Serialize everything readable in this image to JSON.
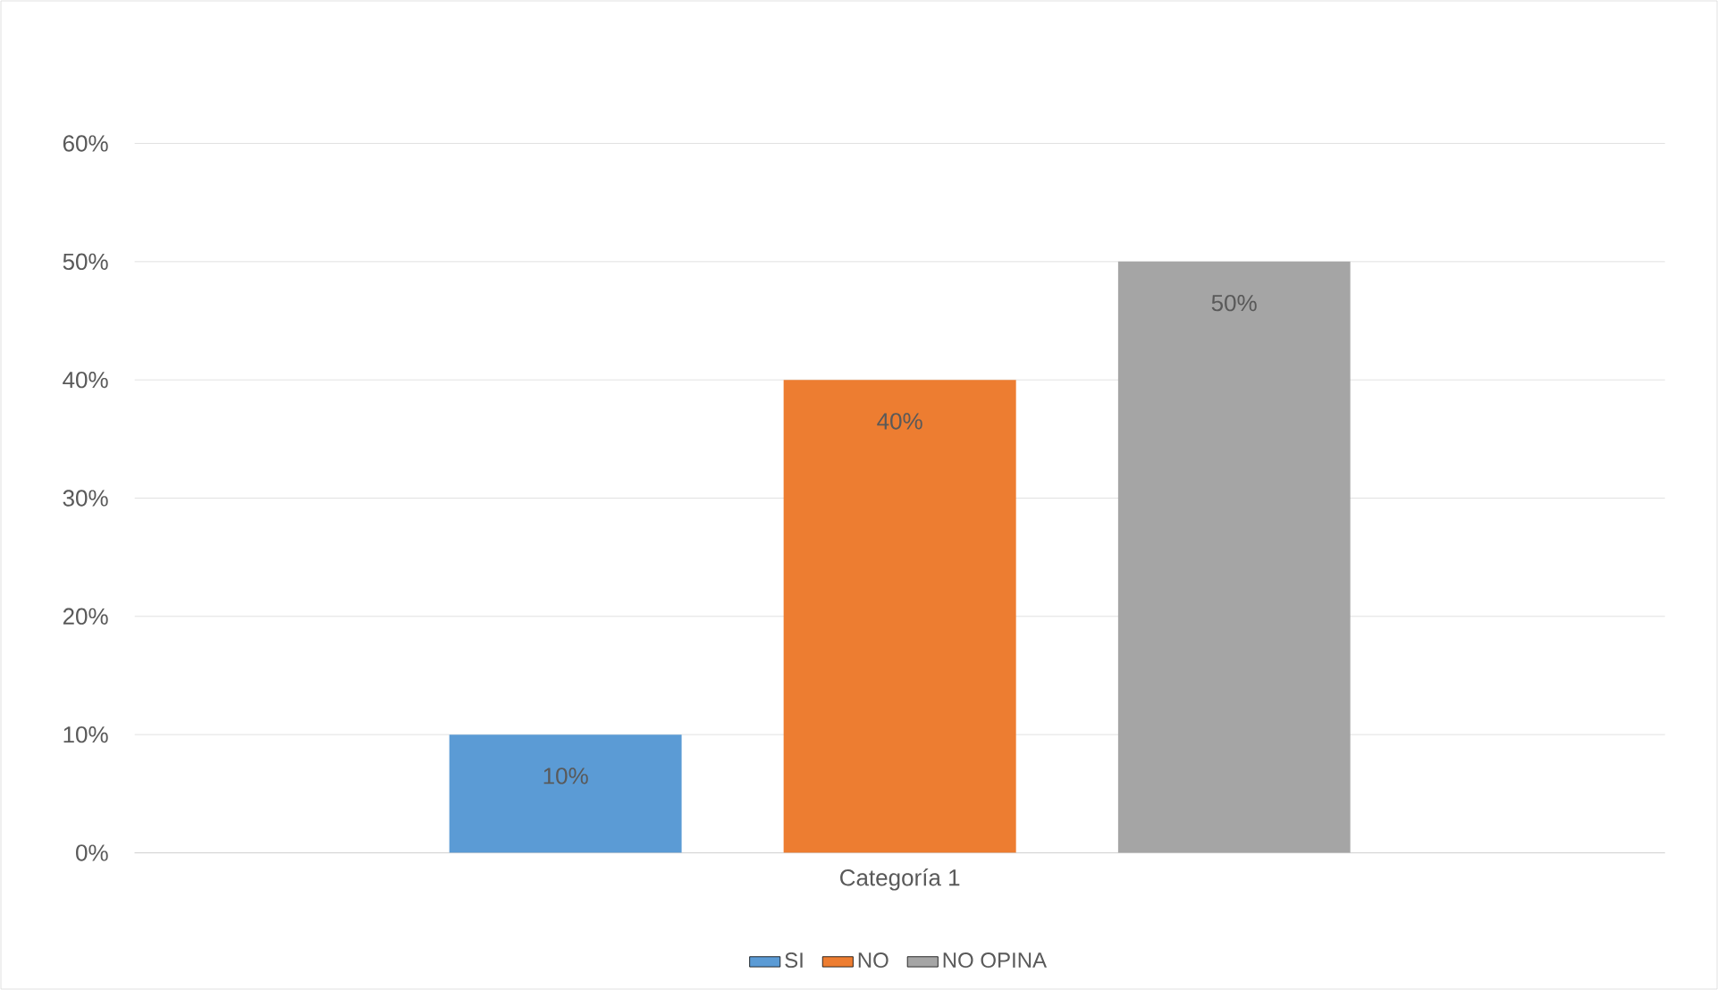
{
  "chart_data": {
    "type": "bar",
    "categories": [
      "Categoría 1"
    ],
    "series": [
      {
        "name": "SI",
        "color": "#5b9bd5",
        "values": [
          10
        ],
        "value_labels": [
          "10%"
        ]
      },
      {
        "name": "NO",
        "color": "#ed7d31",
        "values": [
          40
        ],
        "value_labels": [
          "40%"
        ]
      },
      {
        "name": "NO OPINA",
        "color": "#a5a5a5",
        "values": [
          50
        ],
        "value_labels": [
          "50%"
        ]
      }
    ],
    "ylim": [
      0,
      60
    ],
    "yticks": [
      {
        "value": 0,
        "label": "0%"
      },
      {
        "value": 10,
        "label": "10%"
      },
      {
        "value": 20,
        "label": "20%"
      },
      {
        "value": 30,
        "label": "30%"
      },
      {
        "value": 40,
        "label": "40%"
      },
      {
        "value": 50,
        "label": "50%"
      },
      {
        "value": 60,
        "label": "60%"
      }
    ],
    "grid": "y",
    "legend": "bottom"
  }
}
